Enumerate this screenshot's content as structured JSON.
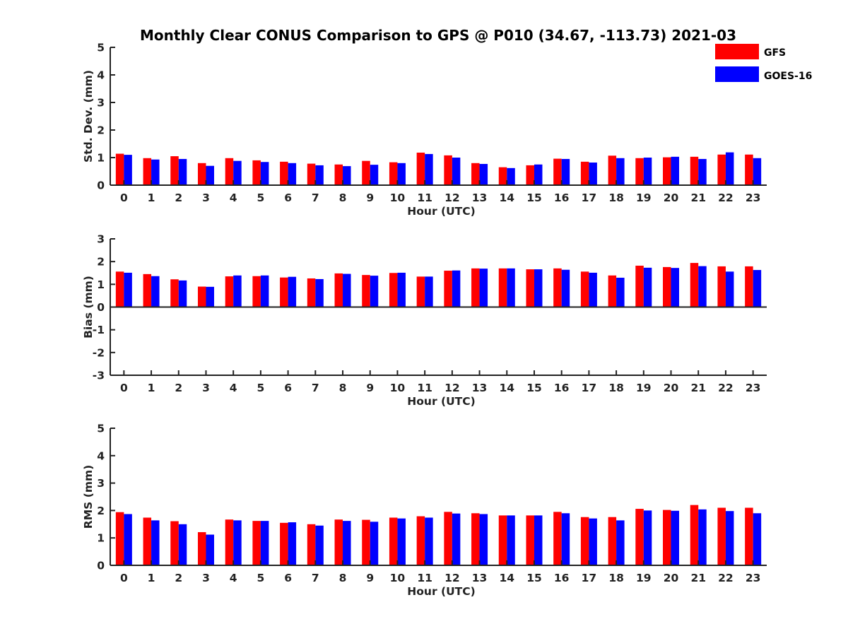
{
  "colors": {
    "GFS": "#ff0000",
    "GOES-16": "#0000ff",
    "axis": "#222222"
  },
  "chart_data": {
    "type": "bar",
    "title": "Monthly Clear CONUS Comparison to GPS @ P010 (34.67, -113.73) 2021-03",
    "legend": {
      "placement": "top-right",
      "entries": [
        "GFS",
        "GOES-16"
      ]
    },
    "categories": [
      "0",
      "1",
      "2",
      "3",
      "4",
      "5",
      "6",
      "7",
      "8",
      "9",
      "10",
      "11",
      "12",
      "13",
      "14",
      "15",
      "16",
      "17",
      "18",
      "19",
      "20",
      "21",
      "22",
      "23"
    ],
    "panels": [
      {
        "ylabel": "Std. Dev. (mm)",
        "xlabel": "Hour (UTC)",
        "ylim": [
          0,
          5
        ],
        "yticks": [
          "0",
          "1",
          "2",
          "3",
          "4",
          "5"
        ],
        "series": [
          {
            "name": "GFS",
            "values": [
              1.14,
              0.98,
              1.05,
              0.8,
              0.98,
              0.9,
              0.85,
              0.78,
              0.75,
              0.88,
              0.83,
              1.18,
              1.08,
              0.8,
              0.65,
              0.72,
              0.96,
              0.85,
              1.07,
              0.98,
              1.01,
              1.03,
              1.11,
              1.11
            ]
          },
          {
            "name": "GOES-16",
            "values": [
              1.1,
              0.93,
              0.95,
              0.7,
              0.88,
              0.84,
              0.8,
              0.72,
              0.69,
              0.74,
              0.8,
              1.13,
              1.0,
              0.77,
              0.62,
              0.75,
              0.95,
              0.82,
              0.98,
              1.0,
              1.03,
              0.95,
              1.19,
              0.98
            ]
          }
        ]
      },
      {
        "ylabel": "Bias (mm)",
        "xlabel": "Hour (UTC)",
        "ylim": [
          -3,
          3
        ],
        "yticks": [
          "-3",
          "-2",
          "-1",
          "0",
          "1",
          "2",
          "3"
        ],
        "series": [
          {
            "name": "GFS",
            "values": [
              1.56,
              1.45,
              1.22,
              0.9,
              1.35,
              1.36,
              1.3,
              1.26,
              1.48,
              1.41,
              1.5,
              1.34,
              1.6,
              1.7,
              1.7,
              1.66,
              1.7,
              1.56,
              1.39,
              1.82,
              1.76,
              1.94,
              1.79,
              1.79
            ]
          },
          {
            "name": "GOES-16",
            "values": [
              1.51,
              1.36,
              1.17,
              0.89,
              1.39,
              1.39,
              1.33,
              1.23,
              1.46,
              1.38,
              1.51,
              1.34,
              1.61,
              1.69,
              1.7,
              1.66,
              1.64,
              1.51,
              1.29,
              1.73,
              1.72,
              1.8,
              1.56,
              1.63
            ]
          }
        ]
      },
      {
        "ylabel": "RMS (mm)",
        "xlabel": "Hour (UTC)",
        "ylim": [
          0,
          5
        ],
        "yticks": [
          "0",
          "1",
          "2",
          "3",
          "4",
          "5"
        ],
        "series": [
          {
            "name": "GFS",
            "values": [
              1.94,
              1.74,
              1.61,
              1.21,
              1.67,
              1.62,
              1.55,
              1.5,
              1.67,
              1.66,
              1.74,
              1.79,
              1.95,
              1.9,
              1.82,
              1.82,
              1.95,
              1.76,
              1.76,
              2.06,
              2.02,
              2.2,
              2.1,
              2.1
            ]
          },
          {
            "name": "GOES-16",
            "values": [
              1.87,
              1.64,
              1.5,
              1.12,
              1.64,
              1.62,
              1.57,
              1.45,
              1.62,
              1.59,
              1.71,
              1.74,
              1.89,
              1.87,
              1.82,
              1.82,
              1.9,
              1.71,
              1.64,
              2.0,
              1.99,
              2.04,
              1.98,
              1.9
            ]
          }
        ]
      }
    ]
  }
}
